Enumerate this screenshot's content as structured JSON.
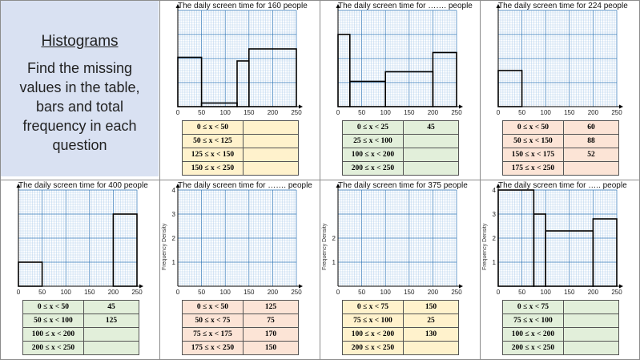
{
  "intro": {
    "heading": "Histograms",
    "body": "Find the missing values in the table, bars and total frequency in each question"
  },
  "colors": {
    "grid_minor": "#9dc3e6",
    "grid_major": "#2e75b6",
    "yellow": "#fff2cc",
    "green": "#e2efda",
    "orange": "#fce4d6",
    "intro_bg": "#d9e1f2"
  },
  "panels": [
    {
      "title": "The daily screen time for 160 people",
      "ylabel": "",
      "y_ticks": [],
      "x_ticks": [
        "0",
        "50",
        "100",
        "150",
        "200",
        "250"
      ],
      "fill": "yellow",
      "bars": [
        {
          "x0": 0,
          "x1": 50,
          "h": 2.05
        },
        {
          "x0": 50,
          "x1": 125,
          "h": 0.15
        },
        {
          "x0": 125,
          "x1": 150,
          "h": 1.9
        },
        {
          "x0": 150,
          "x1": 250,
          "h": 2.4
        }
      ],
      "rows": [
        {
          "interval": "0 ≤ x < 50",
          "freq": ""
        },
        {
          "interval": "50 ≤ x < 125",
          "freq": ""
        },
        {
          "interval": "125 ≤ x < 150",
          "freq": ""
        },
        {
          "interval": "150 ≤ x < 250",
          "freq": ""
        }
      ]
    },
    {
      "title": "The daily screen time for ……. people",
      "ylabel": "",
      "y_ticks": [],
      "x_ticks": [
        "0",
        "50",
        "100",
        "150",
        "200",
        "250"
      ],
      "fill": "green",
      "bars": [
        {
          "x0": 0,
          "x1": 25,
          "h": 3.0
        },
        {
          "x0": 25,
          "x1": 100,
          "h": 1.05
        },
        {
          "x0": 100,
          "x1": 200,
          "h": 1.45
        },
        {
          "x0": 200,
          "x1": 250,
          "h": 2.25
        }
      ],
      "rows": [
        {
          "interval": "0 ≤ x < 25",
          "freq": "45"
        },
        {
          "interval": "25 ≤ x < 100",
          "freq": ""
        },
        {
          "interval": "100 ≤ x < 200",
          "freq": ""
        },
        {
          "interval": "200 ≤ x < 250",
          "freq": ""
        }
      ]
    },
    {
      "title": "The daily screen time for 224 people",
      "ylabel": "",
      "y_ticks": [],
      "x_ticks": [
        "0",
        "50",
        "100",
        "150",
        "200",
        "250"
      ],
      "fill": "orange",
      "bars": [
        {
          "x0": 0,
          "x1": 50,
          "h": 1.5
        }
      ],
      "rows": [
        {
          "interval": "0 ≤ x < 50",
          "freq": "60"
        },
        {
          "interval": "50 ≤ x < 150",
          "freq": "88"
        },
        {
          "interval": "150 ≤ x < 175",
          "freq": "52"
        },
        {
          "interval": "175 ≤ x < 250",
          "freq": ""
        }
      ]
    },
    {
      "title": "The daily screen time for 400 people",
      "ylabel": "",
      "y_ticks": [],
      "x_ticks": [
        "0",
        "50",
        "100",
        "150",
        "200",
        "250"
      ],
      "fill": "green",
      "bars": [
        {
          "x0": 0,
          "x1": 50,
          "h": 1.0
        },
        {
          "x0": 200,
          "x1": 250,
          "h": 3.0
        }
      ],
      "rows": [
        {
          "interval": "0 ≤ x < 50",
          "freq": "45"
        },
        {
          "interval": "50 ≤ x < 100",
          "freq": "125"
        },
        {
          "interval": "100 ≤ x < 200",
          "freq": ""
        },
        {
          "interval": "200 ≤ x < 250",
          "freq": ""
        }
      ]
    },
    {
      "title": "The daily screen time for ……. people",
      "ylabel": "Frequency Density",
      "y_ticks": [
        "1",
        "2",
        "3",
        "4"
      ],
      "x_ticks": [
        "0",
        "50",
        "100",
        "150",
        "200",
        "250"
      ],
      "fill": "orange",
      "bars": [],
      "rows": [
        {
          "interval": "0 ≤ x < 50",
          "freq": "125"
        },
        {
          "interval": "50 ≤ x < 75",
          "freq": "75"
        },
        {
          "interval": "75 ≤ x < 175",
          "freq": "170"
        },
        {
          "interval": "175 ≤ x < 250",
          "freq": "150"
        }
      ]
    },
    {
      "title": "The daily screen time for 375 people",
      "ylabel": "Frequency Density",
      "y_ticks": [
        "1",
        "2"
      ],
      "x_ticks": [
        "0",
        "50",
        "100",
        "150",
        "200",
        "250"
      ],
      "fill": "yellow",
      "bars": [],
      "rows": [
        {
          "interval": "0 ≤ x < 75",
          "freq": "150"
        },
        {
          "interval": "75 ≤ x < 100",
          "freq": "25"
        },
        {
          "interval": "100 ≤ x < 200",
          "freq": "130"
        },
        {
          "interval": "200 ≤ x < 250",
          "freq": ""
        }
      ]
    },
    {
      "title": "The daily screen time for ….. people",
      "ylabel": "Frequency Density",
      "y_ticks": [
        "1",
        "2",
        "3",
        "4"
      ],
      "x_ticks": [
        "0",
        "50",
        "100",
        "150",
        "200",
        "250"
      ],
      "fill": "green",
      "bars": [
        {
          "x0": 0,
          "x1": 75,
          "h": 4.0
        },
        {
          "x0": 75,
          "x1": 100,
          "h": 3.0
        },
        {
          "x0": 100,
          "x1": 200,
          "h": 2.3
        },
        {
          "x0": 200,
          "x1": 250,
          "h": 2.8
        }
      ],
      "rows": [
        {
          "interval": "0 ≤ x < 75",
          "freq": ""
        },
        {
          "interval": "75 ≤ x < 100",
          "freq": ""
        },
        {
          "interval": "100 ≤ x < 200",
          "freq": ""
        },
        {
          "interval": "200 ≤ x < 250",
          "freq": ""
        }
      ]
    }
  ]
}
